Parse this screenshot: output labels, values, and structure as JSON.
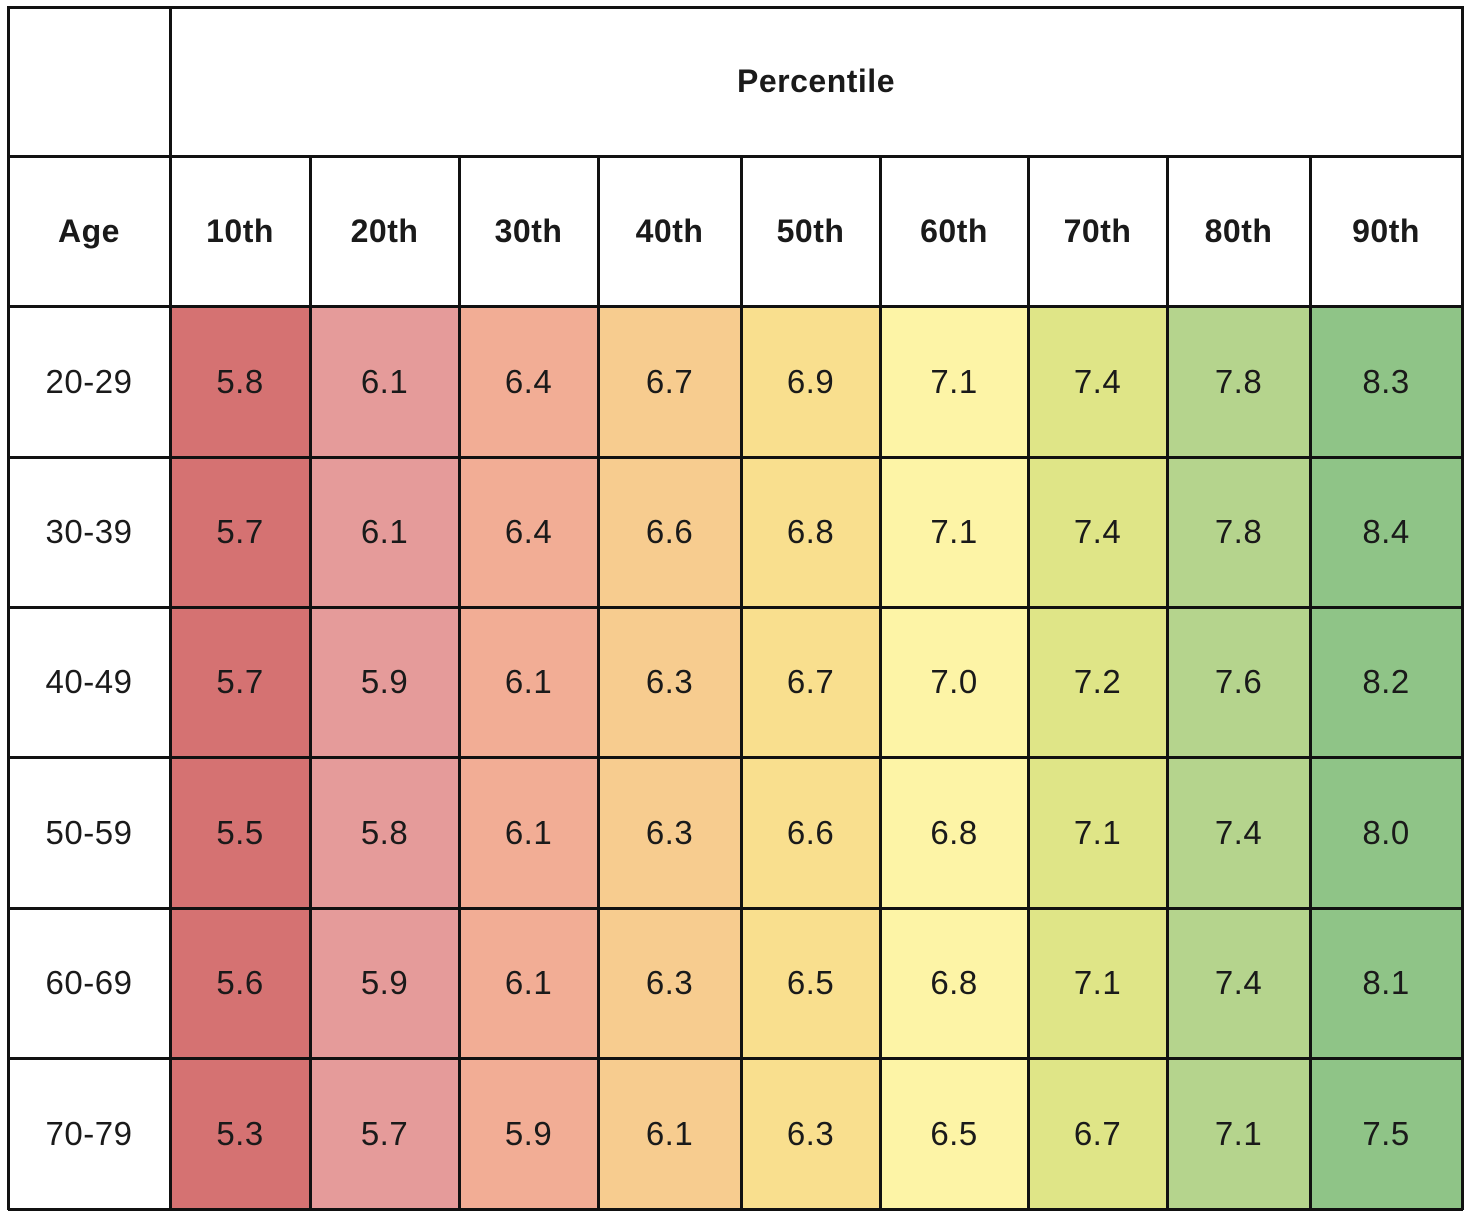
{
  "chart_data": {
    "type": "table",
    "title": "",
    "group_header": "Percentile",
    "row_header_label": "Age",
    "columns": [
      "10th",
      "20th",
      "30th",
      "40th",
      "50th",
      "60th",
      "70th",
      "80th",
      "90th"
    ],
    "rows": [
      {
        "label": "20-29",
        "values": [
          "5.8",
          "6.1",
          "6.4",
          "6.7",
          "6.9",
          "7.1",
          "7.4",
          "7.8",
          "8.3"
        ]
      },
      {
        "label": "30-39",
        "values": [
          "5.7",
          "6.1",
          "6.4",
          "6.6",
          "6.8",
          "7.1",
          "7.4",
          "7.8",
          "8.4"
        ]
      },
      {
        "label": "40-49",
        "values": [
          "5.7",
          "5.9",
          "6.1",
          "6.3",
          "6.7",
          "7.0",
          "7.2",
          "7.6",
          "8.2"
        ]
      },
      {
        "label": "50-59",
        "values": [
          "5.5",
          "5.8",
          "6.1",
          "6.3",
          "6.6",
          "6.8",
          "7.1",
          "7.4",
          "8.0"
        ]
      },
      {
        "label": "60-69",
        "values": [
          "5.6",
          "5.9",
          "6.1",
          "6.3",
          "6.5",
          "6.8",
          "7.1",
          "7.4",
          "8.1"
        ]
      },
      {
        "label": "70-79",
        "values": [
          "5.3",
          "5.7",
          "5.9",
          "6.1",
          "6.3",
          "6.5",
          "6.7",
          "7.1",
          "7.5"
        ]
      }
    ],
    "column_colors": [
      "#d57272",
      "#e59b9a",
      "#f2ad95",
      "#f7cc8f",
      "#f9df8e",
      "#fdf4a6",
      "#dfe587",
      "#b5d48d",
      "#8fc487"
    ],
    "header_background": "#ffffff",
    "line_color": "#111111"
  }
}
